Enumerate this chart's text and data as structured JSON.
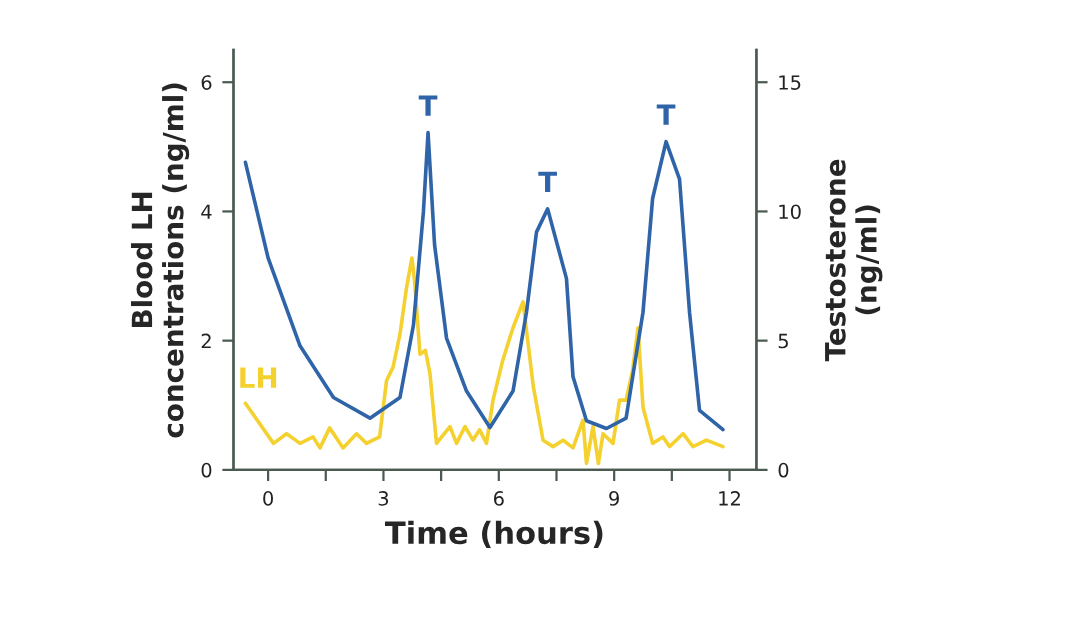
{
  "chart_data": {
    "type": "line",
    "xlabel": "Time (hours)",
    "ylabel": "Blood LH\nconcentrations (ng/ml)",
    "y2label": "Testosterone\n(ng/ml)",
    "xlim": [
      -0.9,
      12.7
    ],
    "xticks": [
      0,
      {
        "value": 1.5,
        "label": null
      },
      3,
      {
        "value": 4.5,
        "label": null
      },
      6,
      {
        "value": 7.5,
        "label": null
      },
      9,
      {
        "value": 10.5,
        "label": null
      },
      12
    ],
    "ylim": [
      0,
      6.5
    ],
    "yticks": [
      0,
      2,
      4,
      6
    ],
    "y2lim": [
      0,
      16.25
    ],
    "y2ticks": [
      0,
      5,
      10,
      15
    ],
    "grid": false,
    "legend": false,
    "marker": "none",
    "line_style": "solid",
    "series": [
      {
        "name": "LH",
        "color": "#f5d130",
        "x": [
          -0.59,
          0.14,
          0.48,
          0.83,
          1.17,
          1.35,
          1.6,
          1.95,
          2.3,
          2.56,
          2.9,
          3.08,
          3.25,
          3.43,
          3.6,
          3.74,
          3.81,
          3.95,
          4.09,
          4.21,
          4.38,
          4.73,
          4.9,
          5.12,
          5.33,
          5.5,
          5.68,
          5.85,
          6.1,
          6.37,
          6.63,
          6.9,
          7.15,
          7.41,
          7.67,
          7.93,
          8.19,
          8.28,
          8.45,
          8.59,
          8.71,
          8.97,
          9.14,
          9.31,
          9.48,
          9.62,
          9.75,
          10.0,
          10.27,
          10.44,
          10.79,
          11.05,
          11.4,
          11.83
        ],
        "values": [
          1.03,
          0.41,
          0.56,
          0.41,
          0.51,
          0.34,
          0.65,
          0.34,
          0.56,
          0.41,
          0.51,
          1.38,
          1.59,
          2.1,
          2.82,
          3.28,
          2.92,
          1.79,
          1.85,
          1.49,
          0.41,
          0.67,
          0.41,
          0.67,
          0.46,
          0.62,
          0.41,
          1.08,
          1.69,
          2.2,
          2.6,
          1.28,
          0.46,
          0.36,
          0.46,
          0.34,
          0.77,
          0.1,
          0.67,
          0.1,
          0.56,
          0.41,
          1.08,
          1.08,
          1.54,
          2.2,
          0.97,
          0.41,
          0.51,
          0.36,
          0.56,
          0.36,
          0.46,
          0.36
        ]
      },
      {
        "color": "#2f64a8",
        "axis": "y2",
        "x": [
          -0.59,
          0.0,
          0.83,
          1.7,
          2.65,
          3.43,
          3.78,
          4.04,
          4.16,
          4.33,
          4.64,
          5.16,
          5.77,
          6.37,
          6.72,
          6.98,
          7.27,
          7.76,
          7.93,
          8.28,
          8.8,
          9.31,
          9.75,
          10.0,
          10.35,
          10.7,
          10.96,
          11.22,
          11.83
        ],
        "values": [
          11.9,
          8.2,
          4.8,
          2.8,
          2.0,
          2.8,
          5.6,
          10.0,
          13.05,
          8.7,
          5.1,
          3.05,
          1.64,
          3.05,
          6.1,
          9.2,
          10.1,
          7.4,
          3.6,
          1.9,
          1.6,
          2.0,
          6.1,
          10.5,
          12.7,
          11.25,
          6.1,
          2.3,
          1.56
        ]
      }
    ],
    "annotations": [
      {
        "text": "T",
        "x": 4.16,
        "y": 5.22
      },
      {
        "text": "T",
        "x": 7.27,
        "y": 4.04
      },
      {
        "text": "T",
        "x": 10.35,
        "y": 5.08
      }
    ]
  }
}
